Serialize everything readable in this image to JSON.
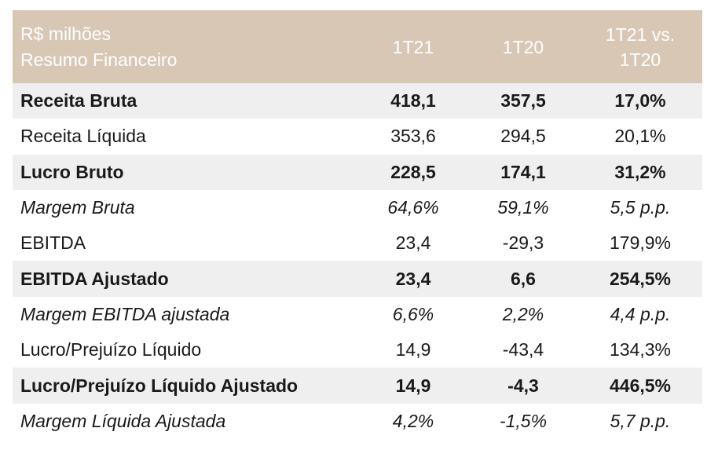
{
  "header": {
    "title_line1": "R$ milhões",
    "title_line2": "Resumo Financeiro",
    "col1": "1T21",
    "col2": "1T20",
    "col3_line1": "1T21 vs.",
    "col3_line2": "1T20"
  },
  "rows": [
    {
      "label": "Receita Bruta",
      "v1": "418,1",
      "v2": "357,5",
      "v3": "17,0%"
    },
    {
      "label": "Receita Líquida",
      "v1": "353,6",
      "v2": "294,5",
      "v3": "20,1%"
    },
    {
      "label": "Lucro Bruto",
      "v1": "228,5",
      "v2": "174,1",
      "v3": "31,2%"
    },
    {
      "label": "Margem Bruta",
      "v1": "64,6%",
      "v2": "59,1%",
      "v3": "5,5 p.p."
    },
    {
      "label": "EBITDA",
      "v1": "23,4",
      "v2": "-29,3",
      "v3": "179,9%"
    },
    {
      "label": "EBITDA Ajustado",
      "v1": "23,4",
      "v2": "6,6",
      "v3": "254,5%"
    },
    {
      "label": "Margem EBITDA ajustada",
      "v1": "6,6%",
      "v2": "2,2%",
      "v3": "4,4 p.p."
    },
    {
      "label": "Lucro/Prejuízo Líquido",
      "v1": "14,9",
      "v2": "-43,4",
      "v3": "134,3%"
    },
    {
      "label": "Lucro/Prejuízo Líquido Ajustado",
      "v1": "14,9",
      "v2": "-4,3",
      "v3": "446,5%"
    },
    {
      "label": "Margem Líquida Ajustada",
      "v1": "4,2%",
      "v2": "-1,5%",
      "v3": "5,7 p.p."
    }
  ],
  "colors": {
    "header_bg": "#d9c7b6",
    "header_text": "#ffffff",
    "row_shade": "#efefef",
    "text": "#1a1a1a"
  }
}
